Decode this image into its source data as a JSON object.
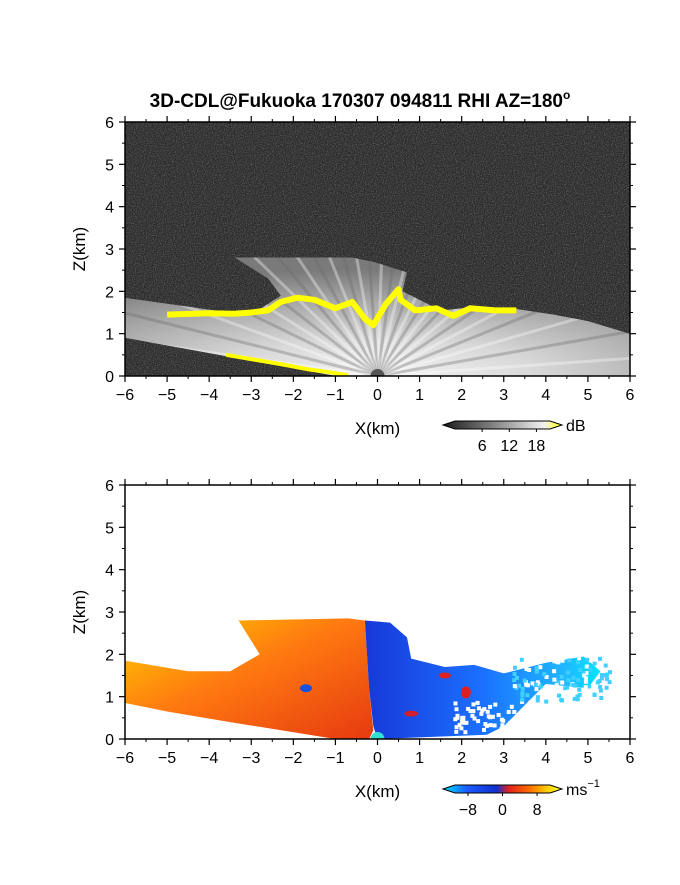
{
  "title": "3D-CDL@Fukuoka 170307 094811 RHI AZ=180",
  "title_superscript": "o",
  "chart_data": [
    {
      "type": "heatmap",
      "panel": "backscatter",
      "xlabel": "X(km)",
      "ylabel": "Z(km)",
      "xlim": [
        -6,
        6
      ],
      "ylim": [
        0,
        6
      ],
      "xticks": [
        -6,
        -5,
        -4,
        -3,
        -2,
        -1,
        0,
        1,
        2,
        3,
        4,
        5,
        6
      ],
      "yticks": [
        0,
        1,
        2,
        3,
        4,
        5,
        6
      ],
      "colorbar": {
        "unit": "dB",
        "ticks": [
          6,
          12,
          18
        ],
        "range": [
          0,
          21
        ],
        "colors": [
          "#1a1a1a",
          "#8a8a8a",
          "#f2f2f2",
          "#ffff00"
        ]
      },
      "background_color": "#2a2a2a",
      "highlight_color": "#ffff00",
      "fan_boundary": [
        [
          -6,
          0.9
        ],
        [
          -6,
          1.85
        ],
        [
          -3.5,
          1.5
        ],
        [
          -3.4,
          1.47
        ],
        [
          -2.8,
          1.58
        ],
        [
          -2.3,
          1.9
        ],
        [
          -2.6,
          2.3
        ],
        [
          -3.4,
          2.8
        ],
        [
          -0.6,
          2.8
        ],
        [
          -0.1,
          2.7
        ],
        [
          0.7,
          2.45
        ],
        [
          0.6,
          2.0
        ],
        [
          1.5,
          1.55
        ],
        [
          2.2,
          1.62
        ],
        [
          3.2,
          1.6
        ],
        [
          4.2,
          1.45
        ],
        [
          5.0,
          1.3
        ],
        [
          6,
          1.0
        ],
        [
          6,
          0
        ],
        [
          -1.0,
          0
        ]
      ],
      "yellow_edge": [
        [
          -5.0,
          1.45
        ],
        [
          -4.0,
          1.48
        ],
        [
          -3.4,
          1.47
        ],
        [
          -3.0,
          1.5
        ],
        [
          -2.6,
          1.55
        ],
        [
          -2.3,
          1.75
        ],
        [
          -1.9,
          1.85
        ],
        [
          -1.5,
          1.8
        ],
        [
          -1.0,
          1.6
        ],
        [
          -0.6,
          1.75
        ],
        [
          -0.3,
          1.35
        ],
        [
          -0.1,
          1.2
        ],
        [
          0.2,
          1.7
        ],
        [
          0.5,
          2.05
        ],
        [
          0.55,
          1.8
        ],
        [
          0.9,
          1.55
        ],
        [
          1.4,
          1.6
        ],
        [
          1.8,
          1.42
        ],
        [
          2.2,
          1.6
        ],
        [
          2.8,
          1.55
        ],
        [
          3.3,
          1.55
        ]
      ],
      "yellow_ground": [
        [
          -3.6,
          0.5
        ],
        [
          -3.0,
          0.4
        ],
        [
          -2.3,
          0.28
        ],
        [
          -1.6,
          0.15
        ],
        [
          -1.2,
          0.1
        ],
        [
          -0.7,
          0.02
        ]
      ]
    },
    {
      "type": "heatmap",
      "panel": "radial_velocity",
      "xlabel": "X(km)",
      "ylabel": "Z(km)",
      "xlim": [
        -6,
        6
      ],
      "ylim": [
        0,
        6
      ],
      "xticks": [
        -6,
        -5,
        -4,
        -3,
        -2,
        -1,
        0,
        1,
        2,
        3,
        4,
        5,
        6
      ],
      "yticks": [
        0,
        1,
        2,
        3,
        4,
        5,
        6
      ],
      "colorbar": {
        "unit": "ms",
        "unit_superscript": "−1",
        "ticks": [
          "−8",
          "0",
          "8"
        ],
        "tick_values": [
          -8,
          0,
          8
        ],
        "range": [
          -11,
          11
        ],
        "colors": [
          "#00e5ff",
          "#1a5cff",
          "#1030d0",
          "#e02020",
          "#ff6a00",
          "#ffd000",
          "#ffff40"
        ]
      },
      "positive_region": [
        [
          -6,
          0.85
        ],
        [
          -6,
          1.85
        ],
        [
          -4.5,
          1.6
        ],
        [
          -3.5,
          1.6
        ],
        [
          -2.8,
          2.0
        ],
        [
          -3.3,
          2.8
        ],
        [
          -0.7,
          2.85
        ],
        [
          -0.3,
          2.8
        ],
        [
          -0.2,
          1.2
        ],
        [
          -0.1,
          0.2
        ],
        [
          -0.2,
          0
        ],
        [
          -1.0,
          0
        ],
        [
          -3.5,
          0.4
        ],
        [
          -5.0,
          0.65
        ]
      ],
      "negative_region": [
        [
          -0.3,
          2.8
        ],
        [
          0.3,
          2.75
        ],
        [
          0.7,
          2.4
        ],
        [
          0.8,
          1.9
        ],
        [
          1.6,
          1.7
        ],
        [
          2.3,
          1.75
        ],
        [
          3.0,
          1.55
        ],
        [
          4.0,
          1.8
        ],
        [
          4.9,
          1.95
        ],
        [
          5.3,
          1.6
        ],
        [
          5.0,
          1.2
        ],
        [
          4.0,
          1.3
        ],
        [
          3.6,
          0.9
        ],
        [
          3.0,
          0.3
        ],
        [
          2.6,
          0.1
        ],
        [
          0.0,
          0
        ],
        [
          -0.1,
          0.3
        ],
        [
          -0.2,
          1.2
        ]
      ]
    }
  ]
}
